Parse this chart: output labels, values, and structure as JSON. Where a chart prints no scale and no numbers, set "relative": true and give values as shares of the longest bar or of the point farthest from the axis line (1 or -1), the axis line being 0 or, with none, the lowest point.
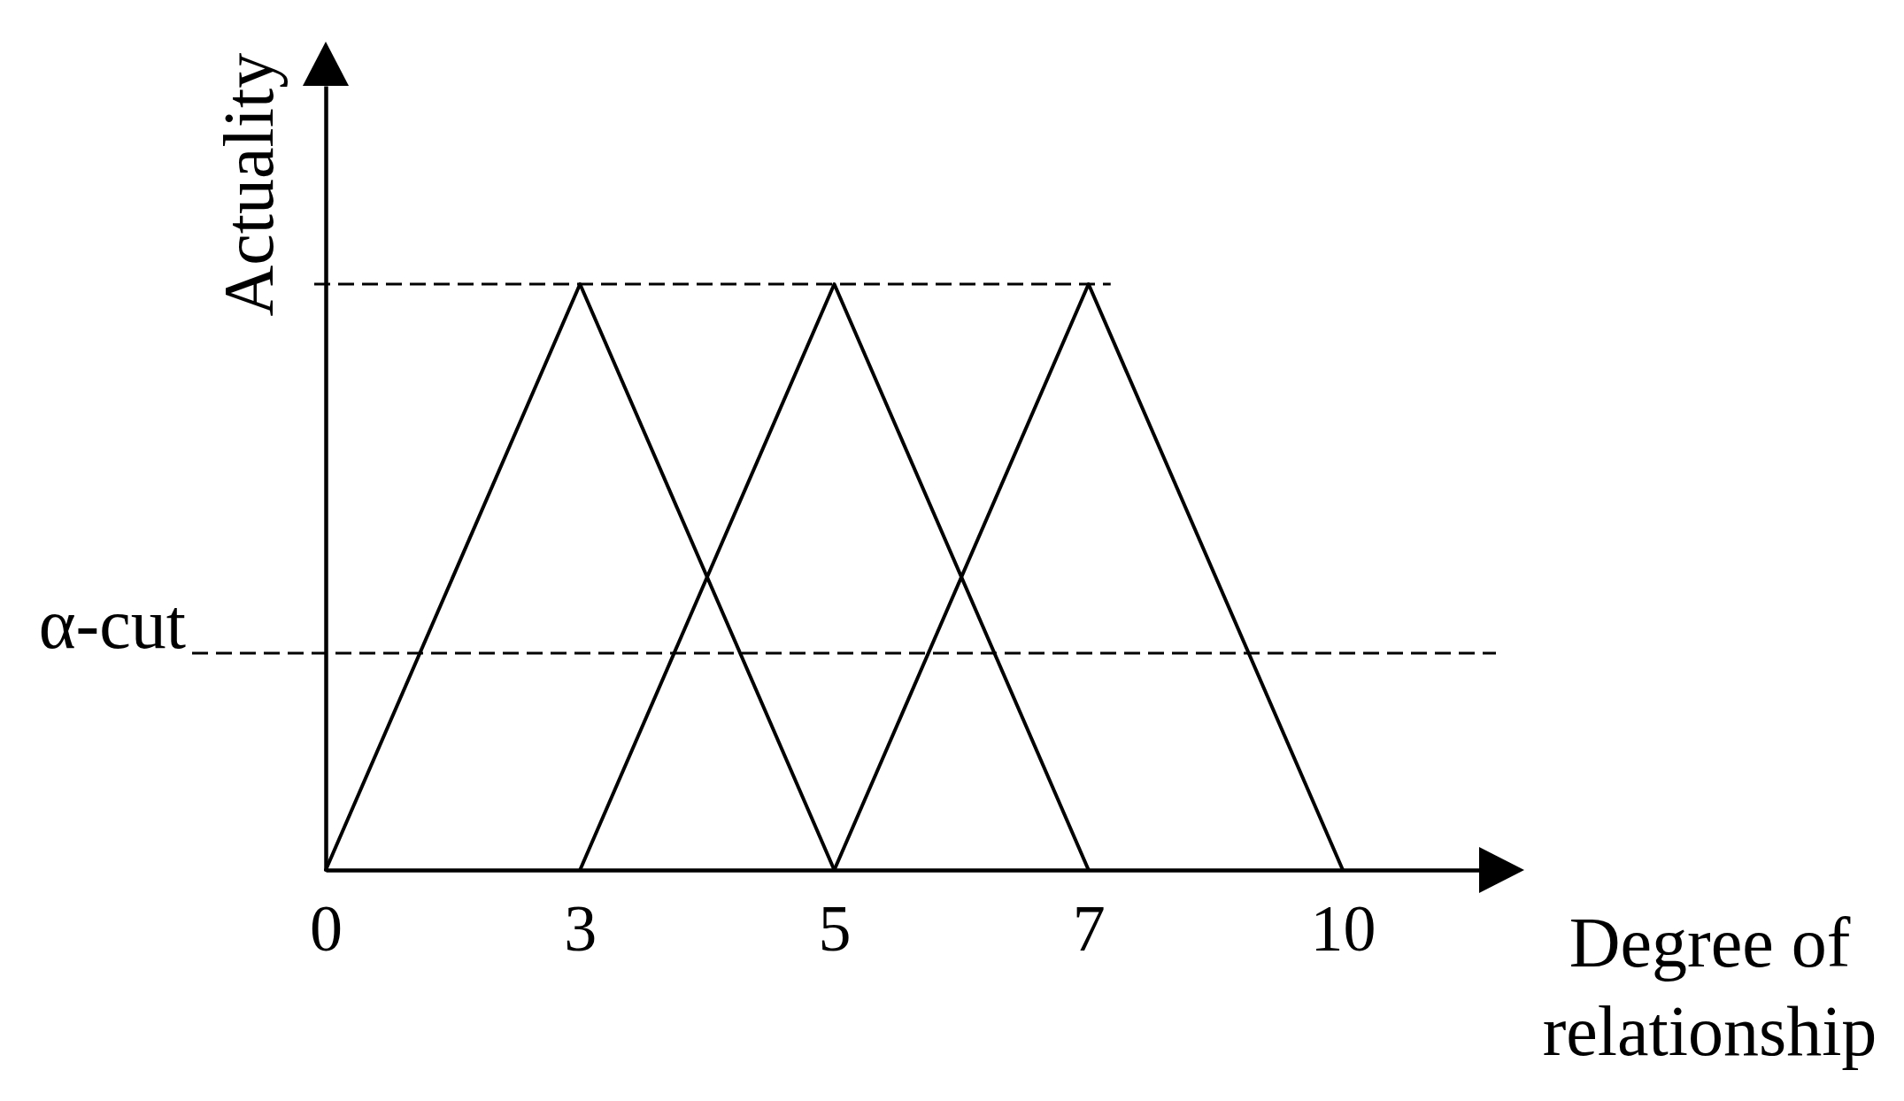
{
  "chart_data": {
    "type": "line",
    "xlabel": "Degree of relationship",
    "ylabel": "Actuality",
    "categories": [
      "0",
      "3",
      "5",
      "7",
      "10"
    ],
    "relative": true,
    "series": [
      {
        "color": "#000000",
        "values": [
          0,
          1,
          0,
          null,
          null
        ]
      },
      {
        "color": "#000000",
        "values": [
          null,
          0,
          1,
          0,
          null
        ]
      },
      {
        "color": "#000000",
        "values": [
          null,
          null,
          0,
          1,
          0
        ]
      }
    ],
    "ref_lines": [
      {
        "axis": "y",
        "value": 1,
        "line_style": "dashed"
      },
      {
        "axis": "y",
        "value": 0.37,
        "label": "α-cut",
        "line_style": "dashed"
      }
    ]
  }
}
